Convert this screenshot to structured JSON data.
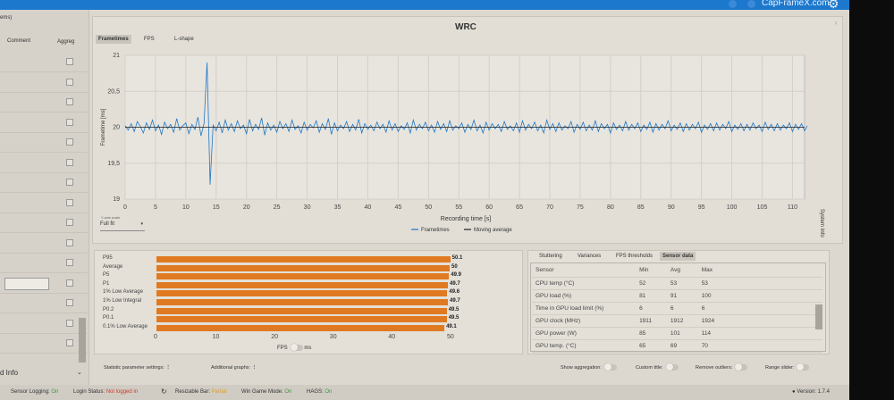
{
  "topbar": {
    "site": "CapFrameX.com"
  },
  "left_panel": {
    "title_fragment": "ems)",
    "columns": [
      "Comment",
      "Aggreg"
    ],
    "footer": "d Info"
  },
  "main": {
    "title": "WRC",
    "tabs": [
      "Frametimes",
      "FPS",
      "L-shape"
    ],
    "active_tab": "Frametimes",
    "y_scale_label": "Y-axis scale",
    "y_scale_value": "Full fit",
    "side_label": "System Info"
  },
  "chart_data": [
    {
      "type": "line",
      "title": "WRC",
      "xlabel": "Recording time [s]",
      "ylabel": "Frametime [ms]",
      "xlim": [
        0,
        112
      ],
      "ylim": [
        19,
        21
      ],
      "xticks": [
        0,
        5,
        10,
        15,
        20,
        25,
        30,
        35,
        40,
        45,
        50,
        55,
        60,
        65,
        70,
        75,
        80,
        85,
        90,
        95,
        100,
        105,
        110
      ],
      "yticks": [
        "19",
        "19,5",
        "20",
        "20,5",
        "21"
      ],
      "grid": true,
      "legend": "bottom-center",
      "series": [
        {
          "name": "Frametimes",
          "color": "#1f77c4",
          "x_step": 0.5,
          "values": [
            20.02,
            19.96,
            20.05,
            19.94,
            20.08,
            20.01,
            19.92,
            20.06,
            19.97,
            20.1,
            19.95,
            20.03,
            19.9,
            20.07,
            19.98,
            20.04,
            19.93,
            20.12,
            19.96,
            20.02,
            20.06,
            19.91,
            20.04,
            19.97,
            20.14,
            19.88,
            20.05,
            20.9,
            19.2,
            20.03,
            19.95,
            20.07,
            19.92,
            20.1,
            19.96,
            20.05,
            19.94,
            20.09,
            19.98,
            20.03,
            19.91,
            20.11,
            19.95,
            20.04,
            19.97,
            20.13,
            19.89,
            20.06,
            19.96,
            20.03,
            19.93,
            20.08,
            19.98,
            20.05,
            19.94,
            20.1,
            19.97,
            20.02,
            19.92,
            20.07,
            19.96,
            20.04,
            19.99,
            20.09,
            19.93,
            20.05,
            19.97,
            20.12,
            19.9,
            20.06,
            19.95,
            20.03,
            19.98,
            20.08,
            19.94,
            20.04,
            19.96,
            20.11,
            19.92,
            20.05,
            19.97,
            20.03,
            19.95,
            20.07,
            19.98,
            20.04,
            19.93,
            20.09,
            19.96,
            20.05,
            19.94,
            20.02,
            19.97,
            20.06,
            19.92,
            20.1,
            19.96,
            20.04,
            19.98,
            20.07,
            19.95,
            20.03,
            19.93,
            20.08,
            19.97,
            20.05,
            19.94,
            20.09,
            19.96,
            20.02,
            19.98,
            20.06,
            19.93,
            20.04,
            19.97,
            20.1,
            19.95,
            20.03,
            19.92,
            20.07,
            19.96,
            20.05,
            19.98,
            20.04,
            19.94,
            20.08,
            19.97,
            20.02,
            19.95,
            20.06,
            19.93,
            20.09,
            19.96,
            20.04,
            19.98,
            20.07,
            19.95,
            20.03,
            19.92,
            20.1,
            19.97,
            20.05,
            19.94,
            20.06,
            19.96,
            20.02,
            19.98,
            20.08,
            19.93,
            20.04,
            19.97,
            20.07,
            19.95,
            20.03,
            19.96,
            20.09,
            19.94,
            20.05,
            19.98,
            20.04,
            19.92,
            20.06,
            19.97,
            20.03,
            19.95,
            20.08,
            19.96,
            20.04,
            19.98,
            20.06,
            19.94,
            20.03,
            19.97,
            20.07,
            19.93,
            20.05,
            19.96,
            20.04,
            19.98,
            20.09,
            19.95,
            20.03,
            19.97,
            20.06,
            19.94,
            20.05,
            19.96,
            20.04,
            19.98,
            20.07,
            19.93,
            20.03,
            19.97,
            20.05,
            19.95,
            20.06,
            19.96,
            20.04,
            19.98,
            20.08,
            19.94,
            20.03,
            19.97,
            20.05,
            19.95,
            20.04,
            19.96,
            20.06,
            19.98,
            20.03,
            19.94,
            20.07,
            19.97,
            20.04,
            19.95,
            20.05,
            19.96,
            20.03,
            19.98,
            20.06,
            19.94,
            20.04,
            19.97,
            20.05,
            19.95,
            20.03
          ]
        },
        {
          "name": "Moving average",
          "color": "#222222",
          "values_constant": 20.0
        }
      ]
    },
    {
      "type": "bar",
      "orientation": "horizontal",
      "categories": [
        "P95",
        "Average",
        "P5",
        "P1",
        "1% Low Average",
        "1% Low Integral",
        "P0.2",
        "P0.1",
        "0.1% Low Average"
      ],
      "values": [
        50.1,
        50,
        49.9,
        49.7,
        49.6,
        49.7,
        49.5,
        49.5,
        49.1
      ],
      "xlim": [
        0,
        50
      ],
      "xticks": [
        0,
        10,
        20,
        30,
        40,
        50
      ],
      "color": "#e07a22"
    }
  ],
  "bar_toggle": {
    "left": "FPS",
    "right": "ms"
  },
  "sensor": {
    "tabs": [
      "Stuttering",
      "Variances",
      "FPS thresholds",
      "Sensor data"
    ],
    "active_tab": "Sensor data",
    "headers": [
      "Sensor",
      "Min",
      "Avg",
      "Max"
    ],
    "rows": [
      [
        "CPU temp (°C)",
        "52",
        "53",
        "53"
      ],
      [
        "GPU load (%)",
        "81",
        "91",
        "100"
      ],
      [
        "Time in GPU load limit (%)",
        "6",
        "6",
        "6"
      ],
      [
        "GPU clock (MHz)",
        "1911",
        "1912",
        "1924"
      ],
      [
        "GPU power (W)",
        "85",
        "101",
        "114"
      ],
      [
        "GPU temp. (°C)",
        "65",
        "69",
        "70"
      ]
    ]
  },
  "toolbar": {
    "stat_settings": "Statistic parameter settings:",
    "additional_graphs": "Additional graphs:",
    "show_aggregation": "Show aggregation:",
    "custom_title": "Custom title:",
    "remove_outliers": "Remove outliers:",
    "range_slider": "Range slider:"
  },
  "status": {
    "sensor_logging": "Sensor Logging:",
    "sensor_logging_val": "On",
    "login": "Login Status:",
    "login_val": "Not logged in",
    "rebar": "Resizable Bar:",
    "rebar_val": "Partial",
    "game_mode": "Win Game Mode:",
    "game_mode_val": "On",
    "hags": "HAGS:",
    "hags_val": "On",
    "version": "Version: 1.7.4"
  }
}
